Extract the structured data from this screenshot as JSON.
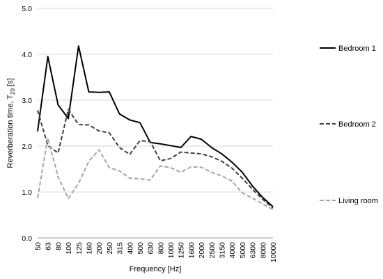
{
  "chart_data": {
    "type": "line",
    "title": "",
    "xlabel": "Frequency [Hz]",
    "ylabel": {
      "main": "Reverberation time, T",
      "sub": "20",
      "unit": " [s]"
    },
    "categories": [
      "50",
      "63",
      "80",
      "100",
      "125",
      "160",
      "200",
      "250",
      "315",
      "400",
      "500",
      "630",
      "800",
      "1000",
      "1250",
      "1600",
      "2000",
      "2500",
      "3150",
      "4000",
      "5000",
      "6300",
      "8000",
      "10000"
    ],
    "ylim": [
      0,
      5
    ],
    "yticks": [
      "0.0",
      "1.0",
      "2.0",
      "3.0",
      "4.0",
      "5.0"
    ],
    "grid": true,
    "legend_position": "right",
    "series": [
      {
        "name": "Bedroom 1",
        "color": "#000000",
        "dash": "solid",
        "values": [
          2.32,
          3.95,
          2.9,
          2.6,
          4.18,
          3.18,
          3.17,
          3.18,
          2.7,
          2.57,
          2.51,
          2.08,
          2.05,
          2.01,
          1.97,
          2.21,
          2.15,
          1.97,
          1.83,
          1.65,
          1.43,
          1.13,
          0.88,
          0.68
        ]
      },
      {
        "name": "Bedroom 2",
        "color": "#404040",
        "dash": "dashed",
        "values": [
          2.78,
          2.01,
          1.85,
          2.8,
          2.47,
          2.46,
          2.33,
          2.29,
          1.97,
          1.82,
          2.12,
          2.1,
          1.68,
          1.73,
          1.87,
          1.85,
          1.83,
          1.77,
          1.67,
          1.52,
          1.3,
          1.06,
          0.84,
          0.65
        ]
      },
      {
        "name": "Living room",
        "color": "#a6a6a6",
        "dash": "dashed",
        "values": [
          0.87,
          2.18,
          1.33,
          0.86,
          1.19,
          1.67,
          1.92,
          1.53,
          1.46,
          1.3,
          1.29,
          1.26,
          1.57,
          1.53,
          1.43,
          1.55,
          1.54,
          1.43,
          1.35,
          1.24,
          0.98,
          0.87,
          0.74,
          0.62
        ]
      }
    ]
  }
}
